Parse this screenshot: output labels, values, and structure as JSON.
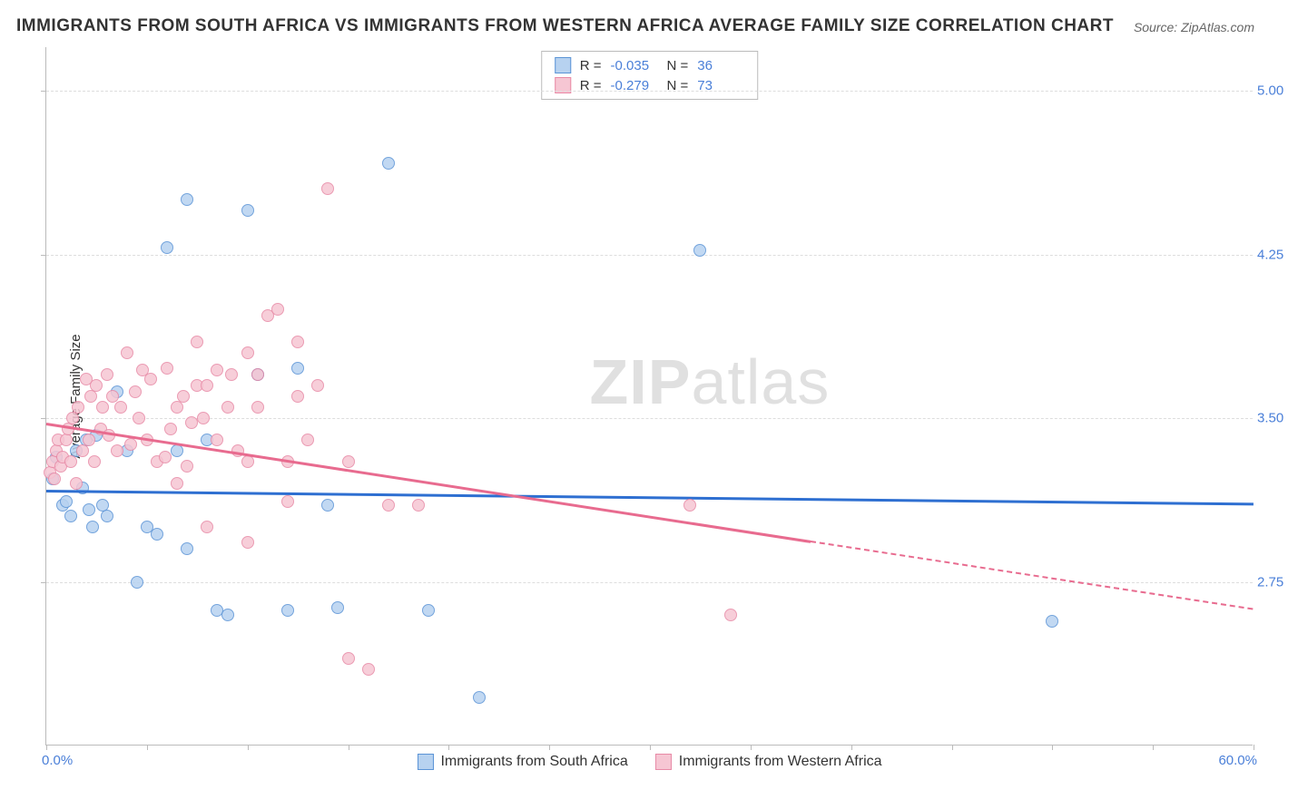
{
  "title": "IMMIGRANTS FROM SOUTH AFRICA VS IMMIGRANTS FROM WESTERN AFRICA AVERAGE FAMILY SIZE CORRELATION CHART",
  "source": "Source: ZipAtlas.com",
  "watermark_a": "ZIP",
  "watermark_b": "atlas",
  "ylabel": "Average Family Size",
  "plot": {
    "xlim": [
      0,
      60
    ],
    "ylim": [
      2.0,
      5.2
    ],
    "xticks_label_min": "0.0%",
    "xticks_label_max": "60.0%",
    "xticks": [
      0,
      5,
      10,
      15,
      20,
      25,
      30,
      35,
      40,
      45,
      50,
      55,
      60
    ],
    "yticks": [
      2.75,
      3.5,
      4.25,
      5.0
    ],
    "ytick_labels": [
      "2.75",
      "3.50",
      "4.25",
      "5.00"
    ],
    "grid_color": "#dddddd",
    "axis_color": "#bbbbbb",
    "tick_color": "#4a7fd8"
  },
  "series": [
    {
      "name": "Immigrants from South Africa",
      "fill": "#b7d2f0",
      "stroke": "#5b94d6",
      "line_color": "#2e6fd1",
      "R_label": "R =",
      "R": "-0.035",
      "N_label": "N =",
      "N": "36",
      "trend": {
        "x0": 0,
        "y0": 3.17,
        "x1": 60,
        "y1": 3.11
      },
      "points": [
        [
          0.3,
          3.22
        ],
        [
          0.5,
          3.32
        ],
        [
          0.8,
          3.1
        ],
        [
          1.0,
          3.12
        ],
        [
          1.2,
          3.05
        ],
        [
          1.5,
          3.35
        ],
        [
          1.8,
          3.18
        ],
        [
          2.0,
          3.4
        ],
        [
          2.1,
          3.08
        ],
        [
          2.3,
          3.0
        ],
        [
          2.5,
          3.42
        ],
        [
          2.8,
          3.1
        ],
        [
          3.0,
          3.05
        ],
        [
          3.5,
          3.62
        ],
        [
          4.0,
          3.35
        ],
        [
          4.5,
          2.75
        ],
        [
          5.0,
          3.0
        ],
        [
          5.5,
          2.97
        ],
        [
          6.0,
          4.28
        ],
        [
          6.5,
          3.35
        ],
        [
          7.0,
          4.5
        ],
        [
          7.0,
          2.9
        ],
        [
          8.0,
          3.4
        ],
        [
          8.5,
          2.62
        ],
        [
          9.0,
          2.6
        ],
        [
          10.0,
          4.45
        ],
        [
          10.5,
          3.7
        ],
        [
          12.0,
          2.62
        ],
        [
          12.5,
          3.73
        ],
        [
          14.0,
          3.1
        ],
        [
          14.5,
          2.63
        ],
        [
          17.0,
          4.67
        ],
        [
          19.0,
          2.62
        ],
        [
          21.5,
          2.22
        ],
        [
          32.5,
          4.27
        ],
        [
          50.0,
          2.57
        ]
      ]
    },
    {
      "name": "Immigrants from Western Africa",
      "fill": "#f6c6d3",
      "stroke": "#e88aa6",
      "line_color": "#e86b8f",
      "R_label": "R =",
      "R": "-0.279",
      "N_label": "N =",
      "N": "73",
      "trend": {
        "x0": 0,
        "y0": 3.48,
        "x1": 38,
        "y1": 2.94,
        "dash_to_x": 60,
        "dash_to_y": 2.63
      },
      "points": [
        [
          0.2,
          3.25
        ],
        [
          0.3,
          3.3
        ],
        [
          0.4,
          3.22
        ],
        [
          0.5,
          3.35
        ],
        [
          0.6,
          3.4
        ],
        [
          0.7,
          3.28
        ],
        [
          0.8,
          3.32
        ],
        [
          1.0,
          3.4
        ],
        [
          1.1,
          3.45
        ],
        [
          1.2,
          3.3
        ],
        [
          1.3,
          3.5
        ],
        [
          1.5,
          3.2
        ],
        [
          1.6,
          3.55
        ],
        [
          1.8,
          3.35
        ],
        [
          2.0,
          3.68
        ],
        [
          2.1,
          3.4
        ],
        [
          2.2,
          3.6
        ],
        [
          2.4,
          3.3
        ],
        [
          2.5,
          3.65
        ],
        [
          2.7,
          3.45
        ],
        [
          2.8,
          3.55
        ],
        [
          3.0,
          3.7
        ],
        [
          3.1,
          3.42
        ],
        [
          3.3,
          3.6
        ],
        [
          3.5,
          3.35
        ],
        [
          3.7,
          3.55
        ],
        [
          4.0,
          3.8
        ],
        [
          4.2,
          3.38
        ],
        [
          4.4,
          3.62
        ],
        [
          4.6,
          3.5
        ],
        [
          4.8,
          3.72
        ],
        [
          5.0,
          3.4
        ],
        [
          5.2,
          3.68
        ],
        [
          5.5,
          3.3
        ],
        [
          5.9,
          3.32
        ],
        [
          6.0,
          3.73
        ],
        [
          6.2,
          3.45
        ],
        [
          6.5,
          3.55
        ],
        [
          6.8,
          3.6
        ],
        [
          7.0,
          3.28
        ],
        [
          7.2,
          3.48
        ],
        [
          7.5,
          3.65
        ],
        [
          7.8,
          3.5
        ],
        [
          8.0,
          3.0
        ],
        [
          8.5,
          3.4
        ],
        [
          8.5,
          3.72
        ],
        [
          9.0,
          3.55
        ],
        [
          9.5,
          3.35
        ],
        [
          10.0,
          3.8
        ],
        [
          10.0,
          3.3
        ],
        [
          10.0,
          2.93
        ],
        [
          10.5,
          3.55
        ],
        [
          10.5,
          3.7
        ],
        [
          11.0,
          3.97
        ],
        [
          11.5,
          4.0
        ],
        [
          12.0,
          3.3
        ],
        [
          12.5,
          3.6
        ],
        [
          12.5,
          3.85
        ],
        [
          13.0,
          3.4
        ],
        [
          13.5,
          3.65
        ],
        [
          14.0,
          4.55
        ],
        [
          15.0,
          3.3
        ],
        [
          15.0,
          2.4
        ],
        [
          16.0,
          2.35
        ],
        [
          17.0,
          3.1
        ],
        [
          18.5,
          3.1
        ],
        [
          12.0,
          3.12
        ],
        [
          8.0,
          3.65
        ],
        [
          9.2,
          3.7
        ],
        [
          6.5,
          3.2
        ],
        [
          7.5,
          3.85
        ],
        [
          32.0,
          3.1
        ],
        [
          34.0,
          2.6
        ]
      ]
    }
  ],
  "legend_bottom": [
    {
      "label": "Immigrants from South Africa"
    },
    {
      "label": "Immigrants from Western Africa"
    }
  ]
}
